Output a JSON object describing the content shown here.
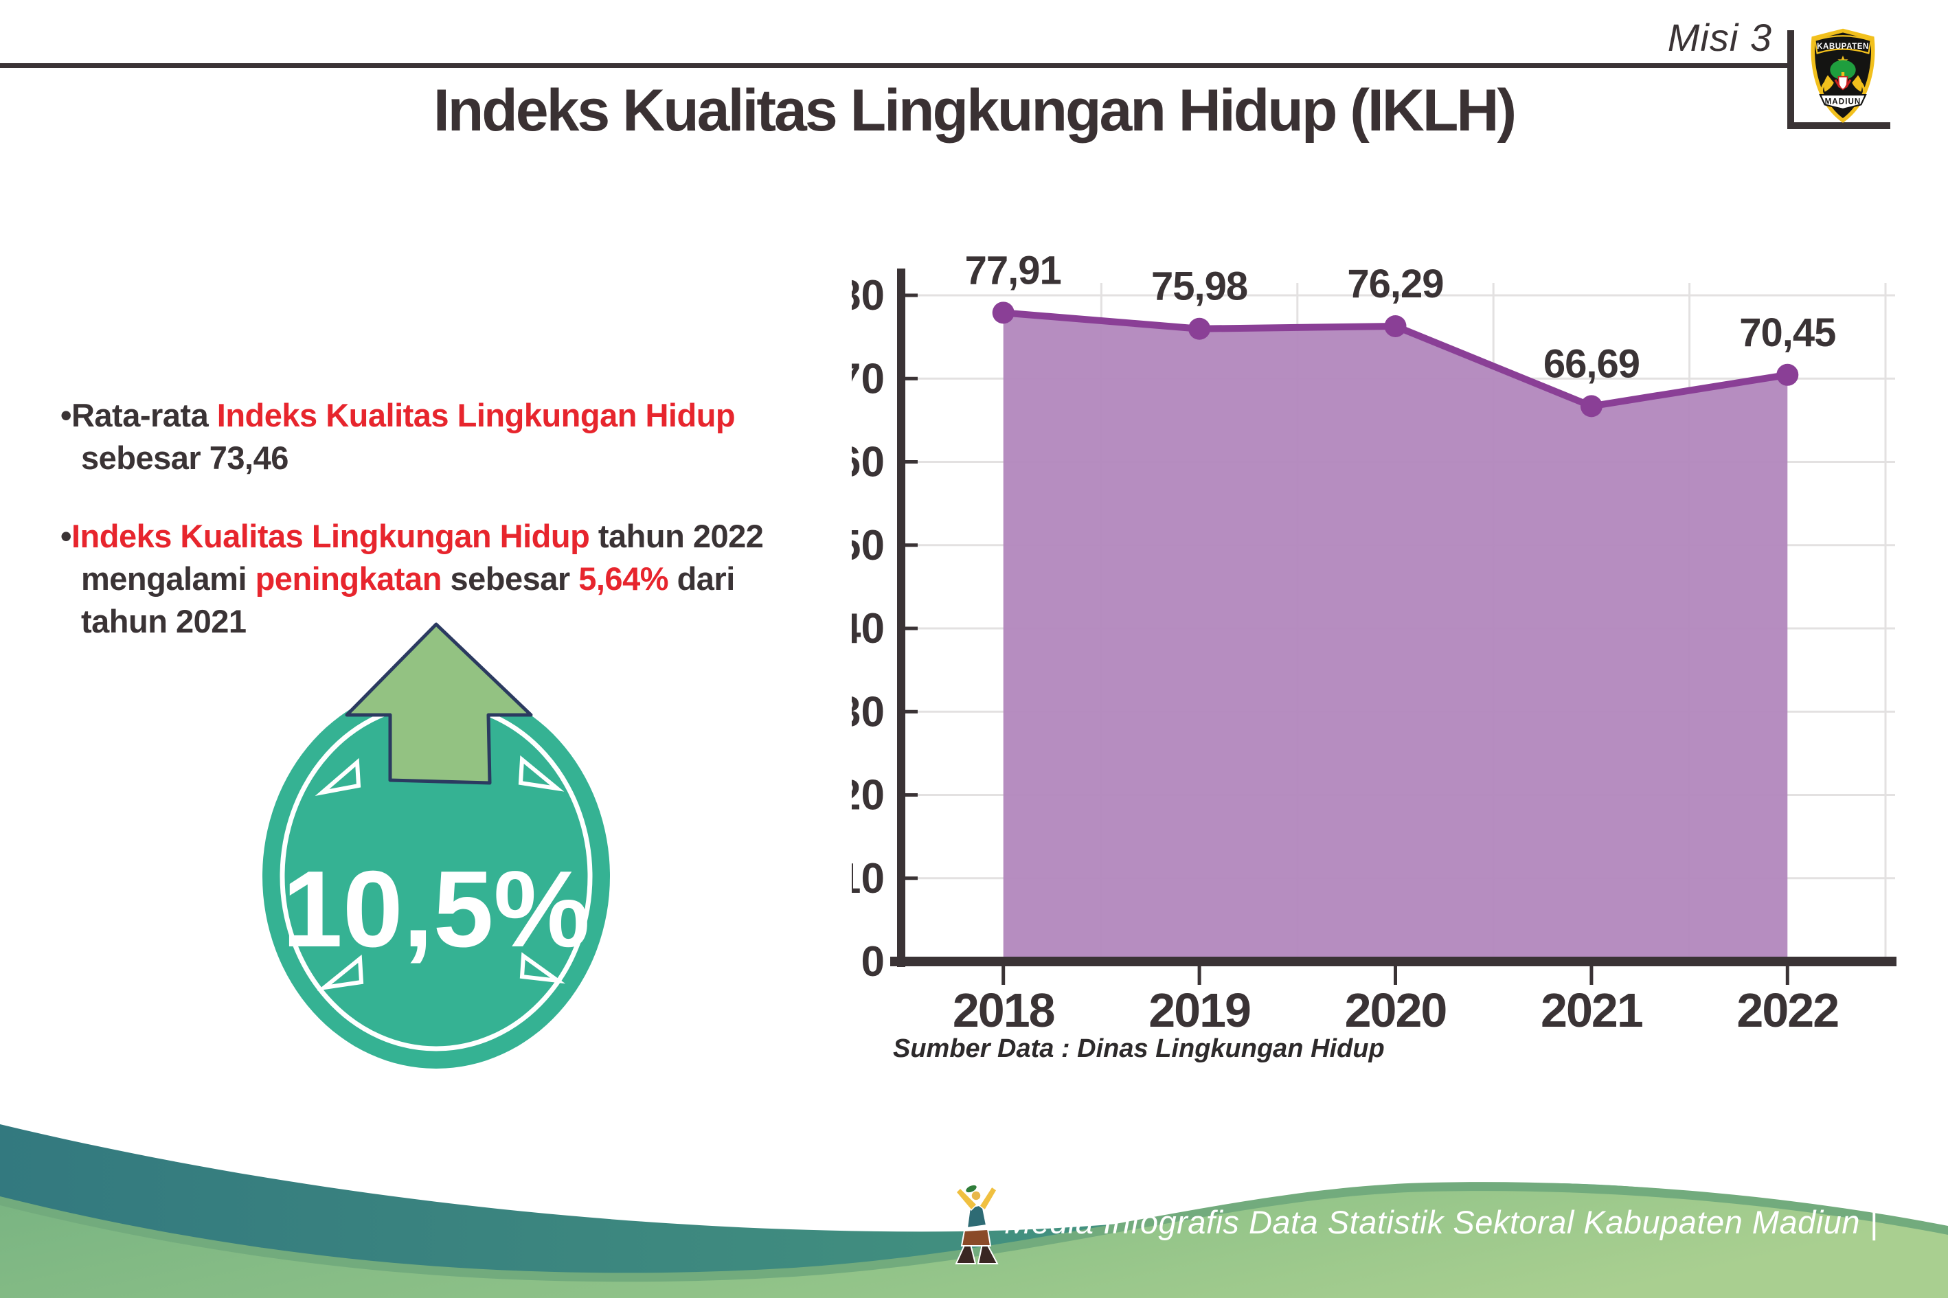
{
  "header": {
    "misi": "Misi 3",
    "logo_top": "KABUPATEN",
    "logo_bottom": "MADIUN"
  },
  "title": "Indeks Kualitas Lingkungan Hidup (IKLH)",
  "bullets": [
    {
      "segments": [
        {
          "text": "•",
          "color": "dark"
        },
        {
          "text": "Rata-rata ",
          "color": "dark"
        },
        {
          "text": "Indeks Kualitas Lingkungan Hidup",
          "color": "red"
        },
        {
          "text": " sebesar 73,46",
          "color": "dark"
        }
      ]
    },
    {
      "segments": [
        {
          "text": "•",
          "color": "dark"
        },
        {
          "text": "Indeks Kualitas Lingkungan Hidup",
          "color": "red"
        },
        {
          "text": " tahun 2022 mengalami ",
          "color": "dark"
        },
        {
          "text": "peningkatan",
          "color": "red"
        },
        {
          "text": " sebesar ",
          "color": "dark"
        },
        {
          "text": "5,64%",
          "color": "red"
        },
        {
          "text": " dari tahun 2021",
          "color": "dark"
        }
      ]
    }
  ],
  "badge": {
    "value": "10,5%",
    "circle_color": "#35b293",
    "arrow_color": "#93c282",
    "outline_color": "#2b3a60"
  },
  "chart_data": {
    "type": "area",
    "title": "",
    "categories": [
      "2018",
      "2019",
      "2020",
      "2021",
      "2022"
    ],
    "values": [
      77.91,
      75.98,
      76.29,
      66.69,
      70.45
    ],
    "point_labels": [
      "77,91",
      "75,98",
      "76,29",
      "66,69",
      "70,45"
    ],
    "xlabel": "",
    "ylabel": "",
    "ylim": [
      0,
      80
    ],
    "ytick_step": 10,
    "grid": true,
    "legend_position": "none",
    "source": "Sumber Data : Dinas Lingkungan Hidup",
    "colors": {
      "area": "#b287bd",
      "line": "#8a3f96",
      "axis": "#3a3335",
      "grid": "#e3e1e1",
      "label": "#3a3335"
    }
  },
  "footer": {
    "text": "Media Infografis Data Statistik Sektoral Kabupaten Madiun |"
  }
}
